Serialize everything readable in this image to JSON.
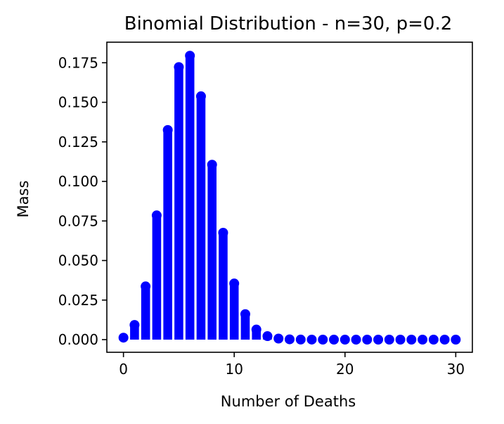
{
  "chart_data": {
    "type": "bar",
    "title": "Binomial Distribution - n=30, p=0.2",
    "xlabel": "Number of Deaths",
    "ylabel": "Mass",
    "x": [
      0,
      1,
      2,
      3,
      4,
      5,
      6,
      7,
      8,
      9,
      10,
      11,
      12,
      13,
      14,
      15,
      16,
      17,
      18,
      19,
      20,
      21,
      22,
      23,
      24,
      25,
      26,
      27,
      28,
      29,
      30
    ],
    "values": [
      0.00124,
      0.00928,
      0.03366,
      0.07853,
      0.13252,
      0.17228,
      0.17946,
      0.15382,
      0.11056,
      0.06756,
      0.03548,
      0.01613,
      0.00638,
      0.00221,
      0.00067,
      0.00018,
      4e-05,
      1e-05,
      0,
      0,
      0,
      0,
      0,
      0,
      0,
      0,
      0,
      0,
      0,
      0,
      0
    ],
    "xlim": [
      -1.5,
      31.5
    ],
    "ylim": [
      -0.008,
      0.188
    ],
    "xticks": [
      0,
      10,
      20,
      30
    ],
    "yticks": [
      0.0,
      0.025,
      0.05,
      0.075,
      0.1,
      0.125,
      0.15,
      0.175
    ],
    "xtick_labels": [
      "0",
      "10",
      "20",
      "30"
    ],
    "ytick_labels": [
      "0.000",
      "0.025",
      "0.050",
      "0.075",
      "0.100",
      "0.125",
      "0.150",
      "0.175"
    ],
    "grid": false,
    "legend": "none",
    "markers": "circle",
    "color": "#0000ff"
  }
}
